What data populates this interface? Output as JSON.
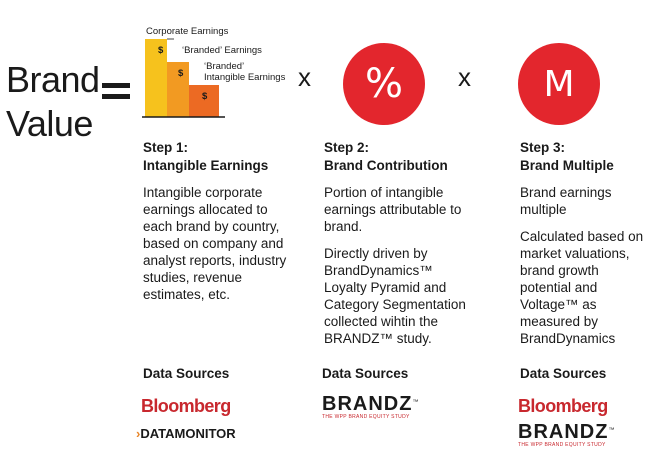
{
  "equation": {
    "lhs_line1": "Brand",
    "lhs_line2": "Value",
    "operator_equals": "=",
    "operator_times": "x",
    "percent_symbol": "%",
    "multiple_symbol": "M"
  },
  "earnings_graphic": {
    "label_corporate": "Corporate Earnings",
    "label_branded": "‘Branded’ Earnings",
    "label_intangible_line1": "‘Branded’",
    "label_intangible_line2": "Intangible Earnings",
    "currency_symbol": "$",
    "bar_colors": [
      "#f6c21d",
      "#f29a22",
      "#ec6a23"
    ]
  },
  "steps": [
    {
      "title_line1": "Step 1:",
      "title_line2": "Intangible Earnings",
      "paragraphs": [
        "Intangible corporate earnings allocated to each brand by country, based on company and analyst reports, industry studies, revenue estimates, etc."
      ],
      "data_sources_label": "Data Sources",
      "sources": [
        "Bloomberg",
        "DATAMONITOR"
      ]
    },
    {
      "title_line1": "Step 2:",
      "title_line2": "Brand Contribution",
      "paragraphs": [
        "Portion of intangible earnings attributable to brand.",
        "Directly driven by BrandDynamics™ Loyalty Pyramid and Category Segmentation collected wihtin the BRANDZ™ study."
      ],
      "data_sources_label": "Data Sources",
      "sources": [
        "BRANDZ"
      ]
    },
    {
      "title_line1": "Step 3:",
      "title_line2": "Brand Multiple",
      "paragraphs": [
        "Brand earnings multiple",
        "Calculated based on market valuations, brand growth potential and Voltage™ as measured by BrandDynamics"
      ],
      "data_sources_label": "Data Sources",
      "sources": [
        "Bloomberg",
        "BRANDZ"
      ]
    }
  ],
  "logos": {
    "brandz_tm": "™",
    "brandz_tagline": "THE WPP BRAND EQUITY STUDY",
    "datamonitor_chevron": "›"
  },
  "colors": {
    "accent_red": "#e3262d",
    "text": "#1a1a1a"
  }
}
